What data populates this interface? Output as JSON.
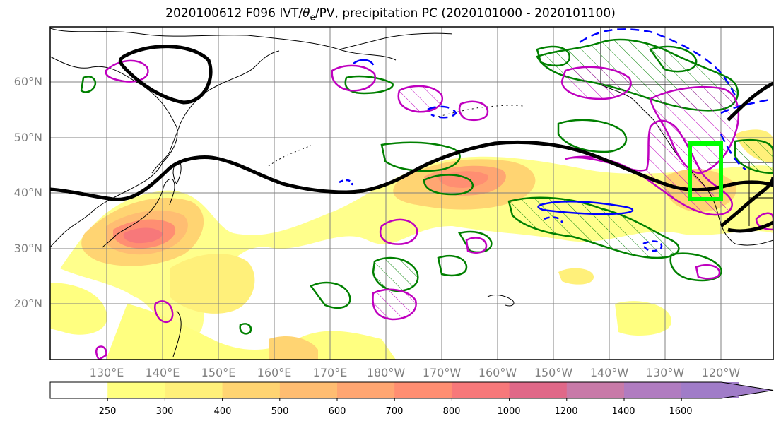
{
  "title": {
    "prefix": "2020100612 F096 IVT/",
    "theta": "θ",
    "theta_sub": "e",
    "suffix": "/PV, precipitation PC (2020101000 - 2020101100)"
  },
  "map": {
    "lat_labels": [
      "60°N",
      "50°N",
      "40°N",
      "30°N",
      "20°N"
    ],
    "lon_labels": [
      "130°E",
      "140°E",
      "150°E",
      "160°E",
      "170°E",
      "180°W",
      "170°W",
      "160°W",
      "150°W",
      "140°W",
      "130°W",
      "120°W"
    ],
    "colors": {
      "jet_contour": "#000000",
      "positive_pc": "#008000",
      "pv_contour": "#bf00bf",
      "theta_contour": "#0000ff",
      "box": "#00ff00"
    }
  },
  "colorbar": {
    "levels": [
      "250",
      "300",
      "400",
      "500",
      "600",
      "700",
      "800",
      "1000",
      "1200",
      "1400",
      "1600"
    ],
    "colors": [
      "#ffffff",
      "#ffff80",
      "#fff07a",
      "#ffd472",
      "#ffbd72",
      "#ffa672",
      "#ff8e72",
      "#f7787a",
      "#e06888",
      "#c87aa8",
      "#b07cc0",
      "#a07cc8"
    ]
  }
}
